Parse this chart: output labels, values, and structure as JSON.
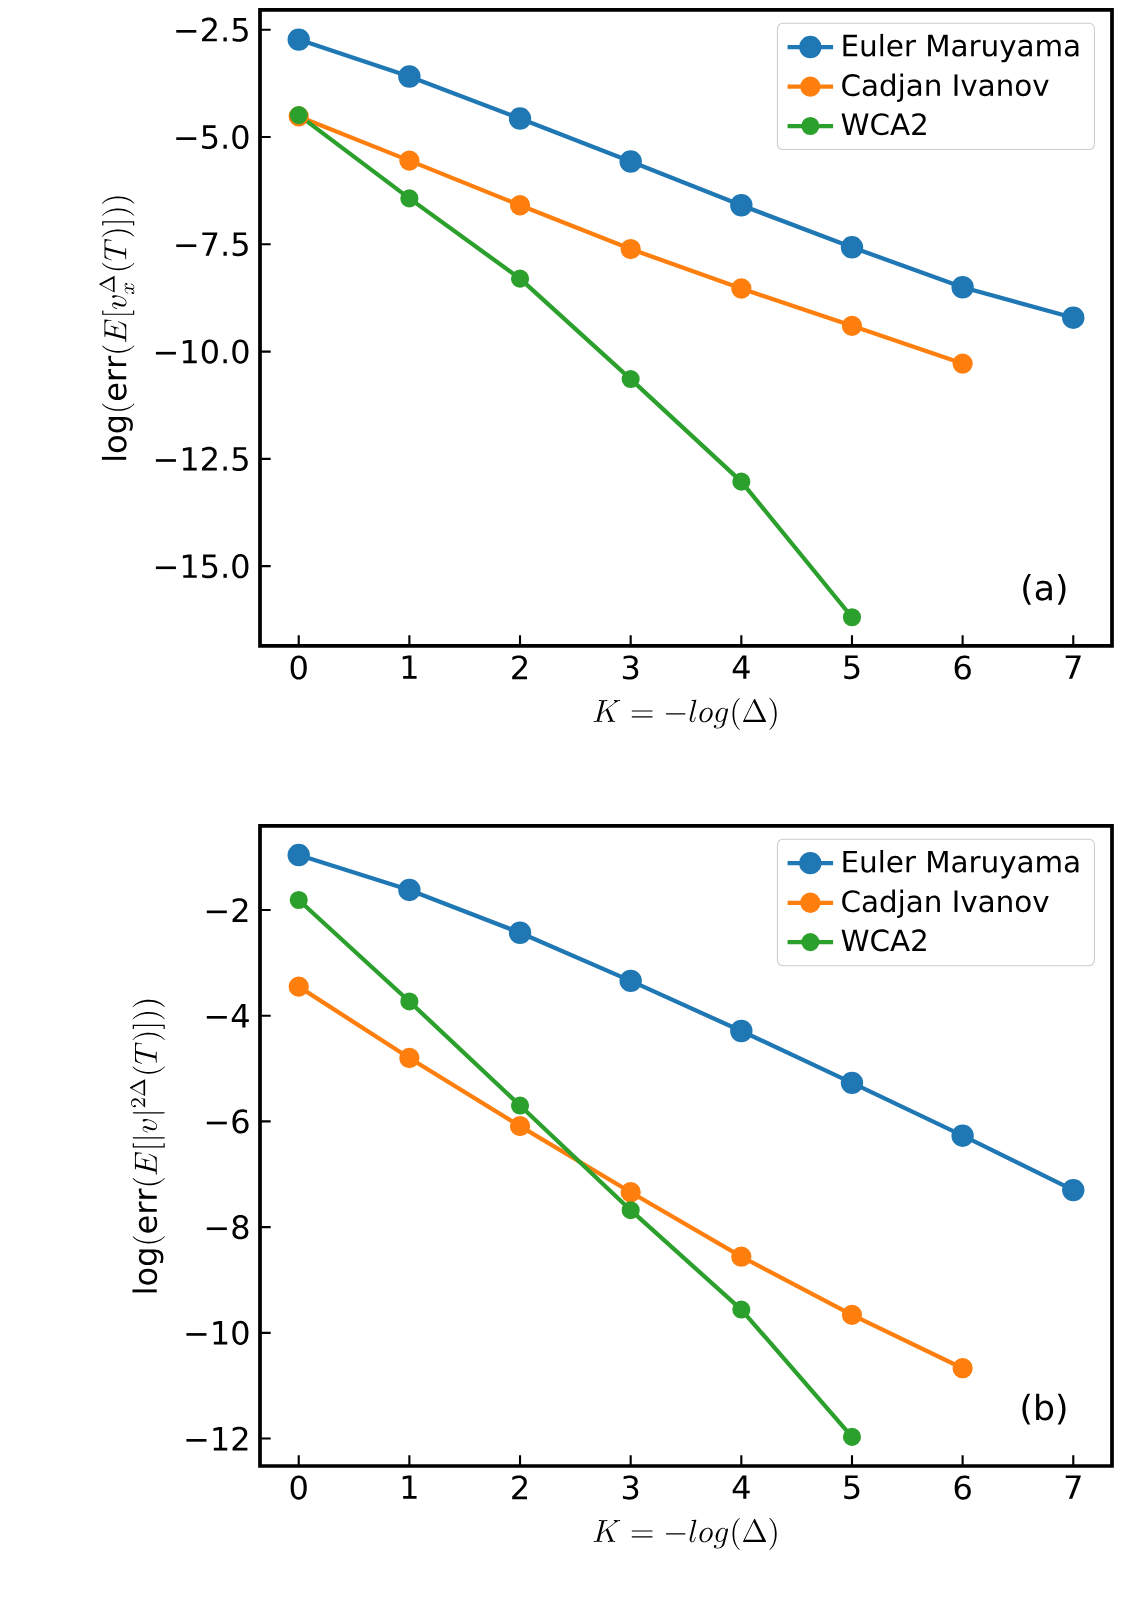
{
  "chart_data": [
    {
      "type": "line",
      "xlabel": "K = -log(\\Delta)",
      "ylabel": "\\mathrm{log}(\\mathrm{err}(E[v_x^{\\Delta}(T)]))",
      "annotations": [
        "(a)"
      ],
      "legend": "top right",
      "marker": "circle",
      "xlim": [
        -0.35,
        7.35
      ],
      "ylim": [
        -16.86,
        -2.04
      ],
      "xticks": [
        0,
        1,
        2,
        3,
        4,
        5,
        6,
        7
      ],
      "yticks": [
        {
          "value": -2.5,
          "label": "−2.5"
        },
        {
          "value": -5.0,
          "label": "−5.0"
        },
        {
          "value": -7.5,
          "label": "−7.5"
        },
        {
          "value": -10.0,
          "label": "−10.0"
        },
        {
          "value": -12.5,
          "label": "−12.5"
        },
        {
          "value": -15.0,
          "label": "−15.0"
        }
      ],
      "series": [
        {
          "name": "Euler Maruyama",
          "color": "#1f77b4",
          "x": [
            0,
            1,
            2,
            3,
            4,
            5,
            6,
            7
          ],
          "values": [
            -2.73,
            -3.59,
            -4.57,
            -5.57,
            -6.59,
            -7.57,
            -8.5,
            -9.21
          ]
        },
        {
          "name": "Cadjan Ivanov",
          "color": "#ff7f0e",
          "x": [
            0,
            1,
            2,
            3,
            4,
            5,
            6
          ],
          "values": [
            -4.52,
            -5.55,
            -6.59,
            -7.61,
            -8.53,
            -9.4,
            -10.28
          ]
        },
        {
          "name": "WCA2",
          "color": "#2ca02c",
          "x": [
            0,
            1,
            2,
            3,
            4,
            5
          ],
          "values": [
            -4.49,
            -6.43,
            -8.3,
            -10.64,
            -13.03,
            -16.19
          ]
        }
      ]
    },
    {
      "type": "line",
      "xlabel": "K = -log(\\Delta)",
      "ylabel": "\\mathrm{log}(\\mathrm{err}(E[|v|^{2\\Delta}(T)]))",
      "annotations": [
        "(b)"
      ],
      "legend": "top right",
      "marker": "circle",
      "xlim": [
        -0.35,
        7.35
      ],
      "ylim": [
        -12.52,
        -0.41
      ],
      "xticks": [
        0,
        1,
        2,
        3,
        4,
        5,
        6,
        7
      ],
      "yticks": [
        {
          "value": -2,
          "label": "−2"
        },
        {
          "value": -4,
          "label": "−4"
        },
        {
          "value": -6,
          "label": "−6"
        },
        {
          "value": -8,
          "label": "−8"
        },
        {
          "value": -10,
          "label": "−10"
        },
        {
          "value": -12,
          "label": "−12"
        }
      ],
      "series": [
        {
          "name": "Euler Maruyama",
          "color": "#1f77b4",
          "x": [
            0,
            1,
            2,
            3,
            4,
            5,
            6,
            7
          ],
          "values": [
            -0.96,
            -1.62,
            -2.43,
            -3.34,
            -4.29,
            -5.27,
            -6.27,
            -7.3
          ]
        },
        {
          "name": "Cadjan Ivanov",
          "color": "#ff7f0e",
          "x": [
            0,
            1,
            2,
            3,
            4,
            5,
            6
          ],
          "values": [
            -3.45,
            -4.8,
            -6.09,
            -7.34,
            -8.56,
            -9.66,
            -10.67
          ]
        },
        {
          "name": "WCA2",
          "color": "#2ca02c",
          "x": [
            0,
            1,
            2,
            3,
            4,
            5
          ],
          "values": [
            -1.81,
            -3.73,
            -5.7,
            -7.68,
            -9.56,
            -11.97
          ]
        }
      ]
    }
  ]
}
